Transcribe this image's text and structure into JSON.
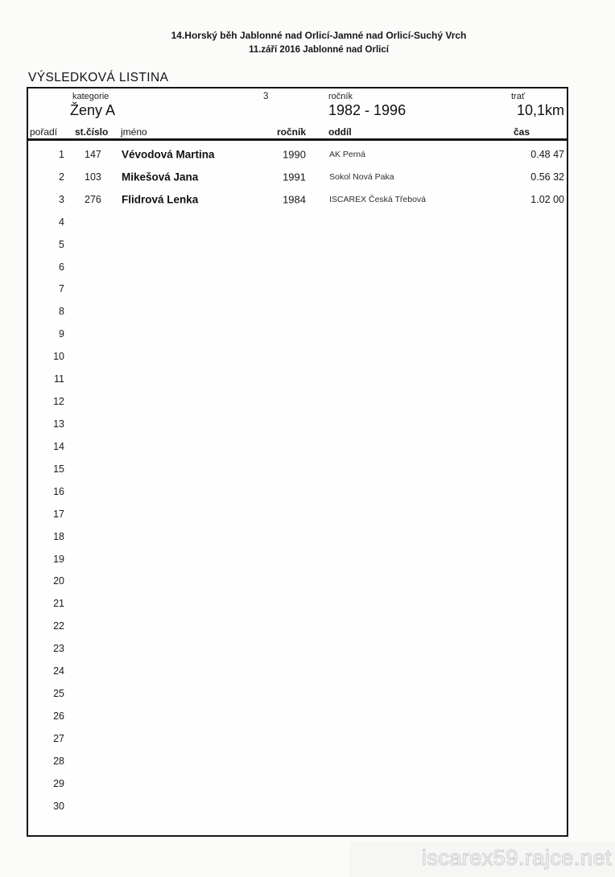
{
  "colors": {
    "ink": "#1a1a1a",
    "table_border": "#161616",
    "watermark_gray": "#d2d2d2",
    "paper": "#fbfbfa"
  },
  "header": {
    "title_line1": "14.Horský běh Jablonné nad Orlicí-Jamné nad Orlicí-Suchý Vrch",
    "title_line2": "11.září 2016 Jablonné nad Orlicí",
    "heading": "VÝSLEDKOVÁ LISTINA"
  },
  "category_box": {
    "kategorie_label": "kategorie",
    "kategorie_value": "Ženy A",
    "category_number": "3",
    "rocnik_label": "ročník",
    "rocnik_range": "1982 - 1996",
    "trat_label": "trať",
    "trat_value": "10,1km"
  },
  "results": {
    "columns": [
      "pořadí",
      "st.číslo",
      "jméno",
      "ročník",
      "oddíl",
      "čas"
    ],
    "rows": [
      {
        "poradi": "1",
        "st_cislo": "147",
        "jmeno": "Vévodová Martina",
        "rocnik": "1990",
        "oddil": "AK Perná",
        "cas": "0.48 47"
      },
      {
        "poradi": "2",
        "st_cislo": "103",
        "jmeno": "Mikešová Jana",
        "rocnik": "1991",
        "oddil": "Sokol Nová Paka",
        "cas": "0.56 32"
      },
      {
        "poradi": "3",
        "st_cislo": "276",
        "jmeno": "Flidrová Lenka",
        "rocnik": "1984",
        "oddil": "ISCAREX Česká Třebová",
        "cas": "1.02 00"
      }
    ],
    "empty_row_numbers": [
      4,
      5,
      6,
      7,
      8,
      9,
      10,
      11,
      12,
      13,
      14,
      15,
      16,
      17,
      18,
      19,
      20,
      21,
      22,
      23,
      24,
      25,
      26,
      27,
      28,
      29,
      30
    ]
  },
  "footer": {
    "watermark": "iscarex59.rajce.net"
  }
}
